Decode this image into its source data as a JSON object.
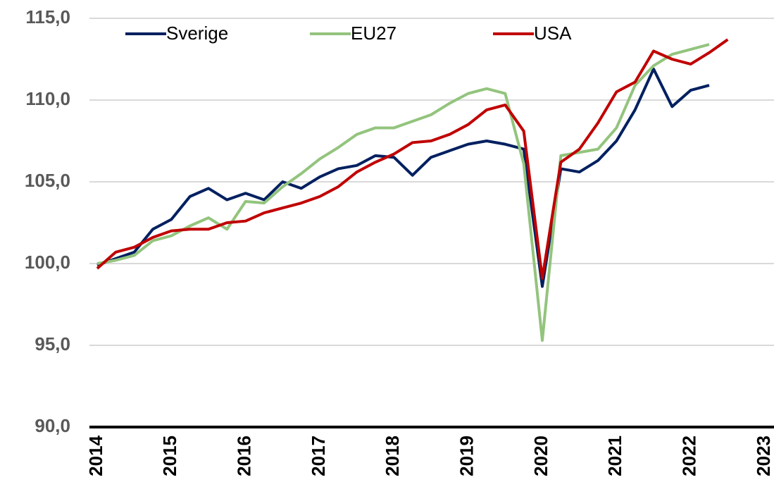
{
  "chart_data": {
    "type": "line",
    "x": [
      2014,
      2014.25,
      2014.5,
      2014.75,
      2015,
      2015.25,
      2015.5,
      2015.75,
      2016,
      2016.25,
      2016.5,
      2016.75,
      2017,
      2017.25,
      2017.5,
      2017.75,
      2018,
      2018.25,
      2018.5,
      2018.75,
      2019,
      2019.25,
      2019.5,
      2019.75,
      2020,
      2020.25,
      2020.5,
      2020.75,
      2021,
      2021.25,
      2021.5,
      2021.75,
      2022,
      2022.25,
      2022.5
    ],
    "series": [
      {
        "name": "Sverige",
        "color": "#002060",
        "values": [
          99.9,
          100.3,
          100.7,
          102.1,
          102.7,
          104.1,
          104.6,
          103.9,
          104.3,
          103.9,
          105.0,
          104.6,
          105.3,
          105.8,
          106.0,
          106.6,
          106.5,
          105.4,
          106.5,
          106.9,
          107.3,
          107.5,
          107.3,
          107.0,
          98.6,
          105.8,
          105.6,
          106.3,
          107.5,
          109.4,
          111.9,
          109.6,
          110.6,
          110.9,
          null
        ]
      },
      {
        "name": "EU27",
        "color": "#93c47d",
        "values": [
          100.0,
          100.2,
          100.5,
          101.4,
          101.7,
          102.3,
          102.8,
          102.1,
          103.8,
          103.7,
          104.7,
          105.5,
          106.4,
          107.1,
          107.9,
          108.3,
          108.3,
          108.7,
          109.1,
          109.8,
          110.4,
          110.7,
          110.4,
          106.1,
          95.3,
          106.6,
          106.8,
          107.0,
          108.3,
          110.9,
          112.1,
          112.8,
          113.1,
          113.4,
          null
        ]
      },
      {
        "name": "USA",
        "color": "#c00000",
        "values": [
          99.7,
          100.7,
          101.0,
          101.6,
          102.0,
          102.1,
          102.1,
          102.5,
          102.6,
          103.1,
          103.4,
          103.7,
          104.1,
          104.7,
          105.6,
          106.2,
          106.7,
          107.4,
          107.5,
          107.9,
          108.5,
          109.4,
          109.7,
          108.1,
          99.1,
          106.2,
          107.0,
          108.6,
          110.5,
          111.1,
          113.0,
          112.5,
          112.2,
          112.9,
          113.7
        ]
      }
    ],
    "xlim": [
      2014,
      2023
    ],
    "xticks": [
      2014,
      2015,
      2016,
      2017,
      2018,
      2019,
      2020,
      2021,
      2022,
      2023
    ],
    "ylim": [
      90,
      115
    ],
    "yticks": [
      {
        "value": 90,
        "label": "90,0"
      },
      {
        "value": 95,
        "label": "95,0"
      },
      {
        "value": 100,
        "label": "100,0"
      },
      {
        "value": 105,
        "label": "105,0"
      },
      {
        "value": 110,
        "label": "110,0"
      },
      {
        "value": 115,
        "label": "115,0"
      }
    ],
    "grid": true,
    "legend": "top"
  }
}
